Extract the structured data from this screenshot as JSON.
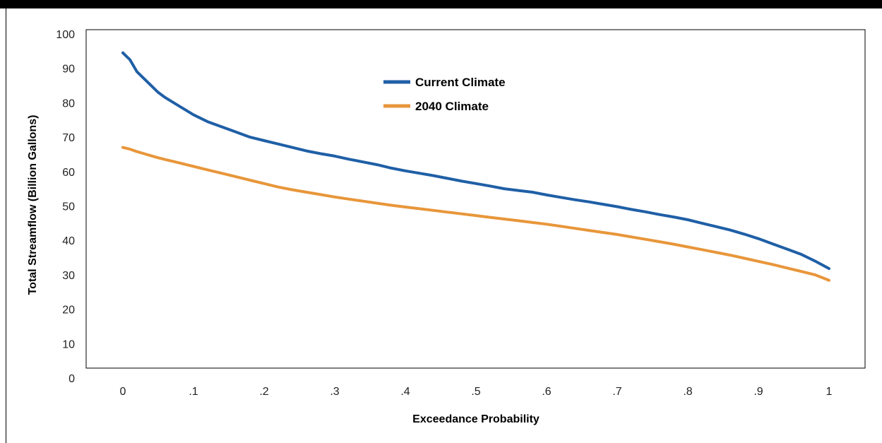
{
  "chart_data": {
    "type": "line",
    "xlabel": "Exceedance Probability",
    "ylabel": "Total Streamflow (Billion Gallons)",
    "xlim": [
      0,
      1
    ],
    "ylim": [
      0,
      100
    ],
    "x_ticks": [
      0,
      0.1,
      0.2,
      0.3,
      0.4,
      0.5,
      0.6,
      0.7,
      0.8,
      0.9,
      1
    ],
    "x_tick_labels": [
      "0",
      ".1",
      ".2",
      ".3",
      ".4",
      ".5",
      ".6",
      ".7",
      ".8",
      ".9",
      "1"
    ],
    "y_ticks": [
      0,
      10,
      20,
      30,
      40,
      50,
      60,
      70,
      80,
      90,
      100
    ],
    "y_tick_labels": [
      "0",
      "10",
      "20",
      "30",
      "40",
      "50",
      "60",
      "70",
      "80",
      "90",
      "100"
    ],
    "grid": false,
    "legend_position": "upper-center",
    "series": [
      {
        "name": "Current Climate",
        "color": "#1f5fa6",
        "x": [
          0,
          0.01,
          0.02,
          0.03,
          0.04,
          0.05,
          0.06,
          0.08,
          0.1,
          0.12,
          0.14,
          0.16,
          0.18,
          0.2,
          0.22,
          0.24,
          0.26,
          0.28,
          0.3,
          0.32,
          0.34,
          0.36,
          0.38,
          0.4,
          0.42,
          0.44,
          0.46,
          0.48,
          0.5,
          0.52,
          0.54,
          0.56,
          0.58,
          0.6,
          0.62,
          0.64,
          0.66,
          0.68,
          0.7,
          0.72,
          0.74,
          0.76,
          0.78,
          0.8,
          0.82,
          0.84,
          0.86,
          0.88,
          0.9,
          0.92,
          0.94,
          0.96,
          0.98,
          1.0
        ],
        "values": [
          94.5,
          92.5,
          89,
          87,
          85,
          83,
          81.5,
          79,
          76.5,
          74.5,
          73,
          71.5,
          70,
          69,
          68,
          67,
          66,
          65.2,
          64.5,
          63.6,
          62.8,
          62,
          61,
          60.2,
          59.5,
          58.8,
          58,
          57.2,
          56.5,
          55.8,
          55,
          54.5,
          54,
          53.2,
          52.5,
          51.8,
          51.2,
          50.5,
          49.8,
          49,
          48.3,
          47.5,
          46.8,
          46,
          45,
          44,
          43,
          41.8,
          40.5,
          39,
          37.5,
          36,
          34,
          31.8
        ]
      },
      {
        "name": "2040 Climate",
        "color": "#e8963a",
        "x": [
          0,
          0.01,
          0.02,
          0.03,
          0.04,
          0.05,
          0.06,
          0.08,
          0.1,
          0.12,
          0.14,
          0.16,
          0.18,
          0.2,
          0.22,
          0.24,
          0.26,
          0.28,
          0.3,
          0.32,
          0.34,
          0.36,
          0.38,
          0.4,
          0.42,
          0.44,
          0.46,
          0.48,
          0.5,
          0.52,
          0.54,
          0.56,
          0.58,
          0.6,
          0.62,
          0.64,
          0.66,
          0.68,
          0.7,
          0.72,
          0.74,
          0.76,
          0.78,
          0.8,
          0.82,
          0.84,
          0.86,
          0.88,
          0.9,
          0.92,
          0.94,
          0.96,
          0.98,
          1.0
        ],
        "values": [
          67,
          66.5,
          65.8,
          65.2,
          64.6,
          64,
          63.5,
          62.5,
          61.5,
          60.5,
          59.5,
          58.5,
          57.5,
          56.5,
          55.5,
          54.7,
          54,
          53.3,
          52.6,
          52,
          51.4,
          50.8,
          50.2,
          49.7,
          49.2,
          48.7,
          48.2,
          47.7,
          47.2,
          46.7,
          46.2,
          45.7,
          45.2,
          44.7,
          44.1,
          43.5,
          42.9,
          42.3,
          41.7,
          41,
          40.3,
          39.6,
          38.9,
          38.1,
          37.3,
          36.5,
          35.7,
          34.8,
          33.9,
          33,
          32,
          31,
          30,
          28.4
        ]
      }
    ]
  }
}
